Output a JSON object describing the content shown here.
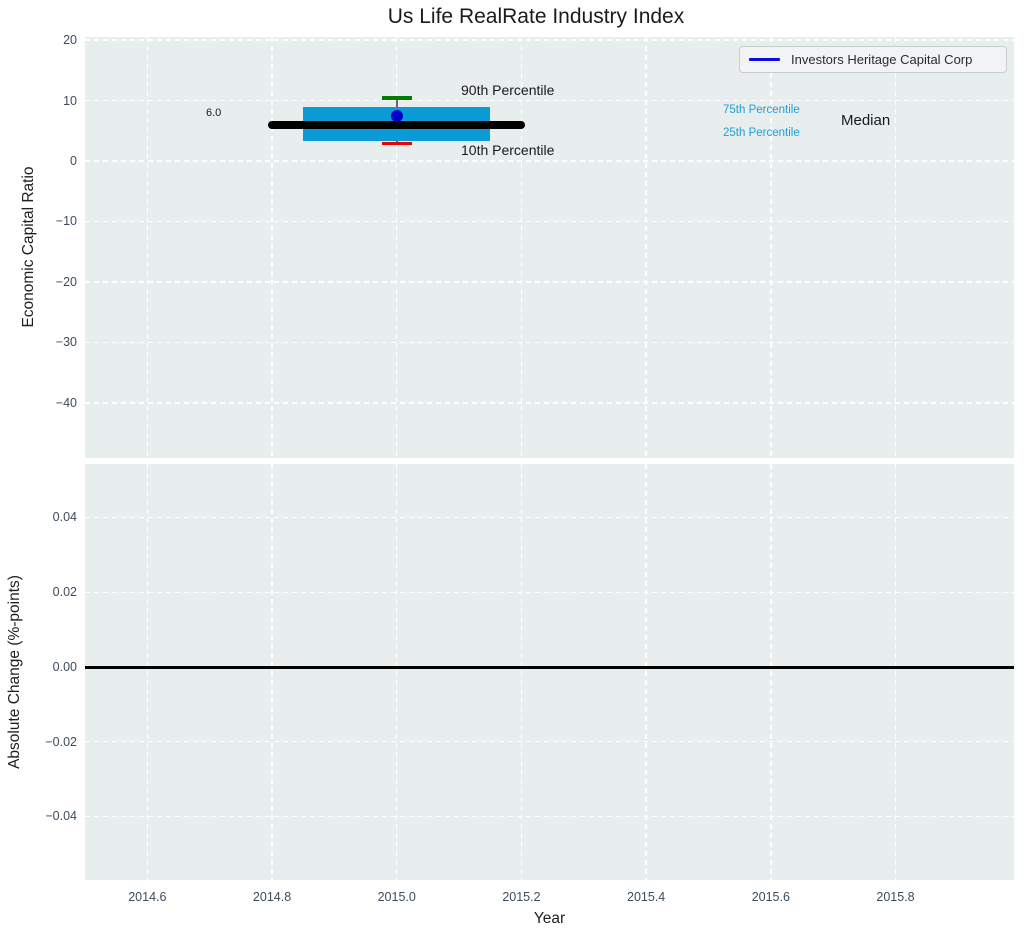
{
  "chart_data": [
    {
      "type": "boxplot",
      "title": "Us Life RealRate Industry Index",
      "ylabel": "Economic Capital Ratio",
      "xlabel": "",
      "xlim": [
        2014.5,
        2015.99
      ],
      "ylim": [
        -49.1,
        20.5
      ],
      "xtick_values": [
        2014.6,
        2014.8,
        2015.0,
        2015.2,
        2015.4,
        2015.6,
        2015.8
      ],
      "ytick_values": [
        20,
        10,
        0,
        -10,
        -20,
        -30,
        -40
      ],
      "ytick_labels": [
        "20",
        "10",
        "0",
        "−10",
        "−20",
        "−30",
        "−40"
      ],
      "grid": "white-dashed-on",
      "legend": {
        "position": "upper-right",
        "entries": [
          {
            "label": "Investors Heritage Capital Corp",
            "marker": "line",
            "color": "#0d0de0"
          }
        ]
      },
      "box": {
        "x": 2015.0,
        "p90": 10.4,
        "p75": 9.0,
        "median": 6.0,
        "p25": 3.3,
        "p10": 2.9,
        "company_value": 7.5,
        "box_half_width": 0.15,
        "median_half_width": 0.206,
        "cap_half_width": 0.024
      },
      "annotations": {
        "median_value_label": "6.0",
        "p90_label": "90th Percentile",
        "p10_label": "10th Percentile",
        "p75_label": "75th Percentile",
        "p25_label": "25th Percentile",
        "median_label": "Median"
      },
      "colors": {
        "box_fill": "#0a9bd7",
        "median_line": "#000000",
        "p90_cap": "#007d00",
        "p10_cap": "#ee0000",
        "company_dot": "#0000cd",
        "percentile_text": "#1e9fd6",
        "axes_background": "#e8edee",
        "tick_text": "#3d4c5c"
      }
    },
    {
      "type": "line",
      "ylabel": "Absolute Change (%-points)",
      "xlabel": "Year",
      "xlim": [
        2014.5,
        2015.99
      ],
      "ylim": [
        -0.057,
        0.0543
      ],
      "xtick_values": [
        2014.6,
        2014.8,
        2015.0,
        2015.2,
        2015.4,
        2015.6,
        2015.8
      ],
      "xtick_labels": [
        "2014.6",
        "2014.8",
        "2015.0",
        "2015.2",
        "2015.4",
        "2015.6",
        "2015.8"
      ],
      "ytick_values": [
        0.04,
        0.02,
        0.0,
        -0.02,
        -0.04
      ],
      "ytick_labels": [
        "0.04",
        "0.02",
        "0.00",
        "−0.02",
        "−0.04"
      ],
      "zero_line_y": 0.0,
      "series": []
    }
  ]
}
